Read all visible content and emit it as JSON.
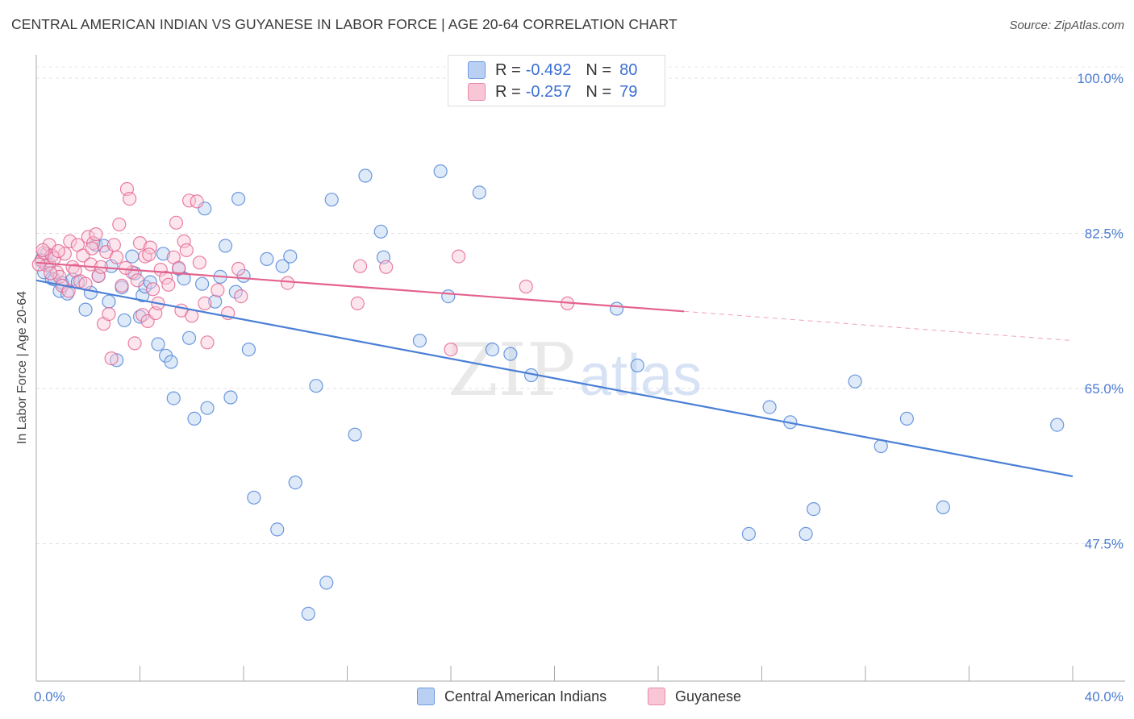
{
  "title": "CENTRAL AMERICAN INDIAN VS GUYANESE IN LABOR FORCE | AGE 20-64 CORRELATION CHART",
  "source": "Source: ZipAtlas.com",
  "watermark": {
    "zip": "ZIP",
    "atlas": "atlas"
  },
  "legend": {
    "r_label": "R =",
    "n_label": "N =",
    "rows": [
      {
        "r": "-0.492",
        "n": "80",
        "fill": "#b9d0f2",
        "stroke": "#6f9be0"
      },
      {
        "r": "-0.257",
        "n": "79",
        "fill": "#f9c6d6",
        "stroke": "#e98aa9"
      }
    ]
  },
  "chart_data": {
    "type": "scatter",
    "title": "CENTRAL AMERICAN INDIAN VS GUYANESE IN LABOR FORCE | AGE 20-64 CORRELATION CHART",
    "xlabel": "",
    "ylabel": "In Labor Force | Age 20-64",
    "xlim": [
      0,
      40
    ],
    "ylim": [
      32,
      102
    ],
    "x_tick_labels": [
      "0.0%",
      "40.0%"
    ],
    "y_ticks": [
      47.5,
      65.0,
      82.5,
      100.0
    ],
    "y_tick_labels": [
      "47.5%",
      "65.0%",
      "82.5%",
      "100.0%"
    ],
    "grid": "horizontal dashed",
    "legend_position": "top-center",
    "series": [
      {
        "name": "Central American Indians",
        "color": "#4a7fd6",
        "fill": "#b9d0f2",
        "trend": {
          "x": [
            0,
            40
          ],
          "y": [
            77.2,
            55.1
          ]
        },
        "points": [
          [
            0.2,
            79.5
          ],
          [
            0.3,
            78.1
          ],
          [
            0.5,
            79.0
          ],
          [
            0.6,
            77.4
          ],
          [
            0.7,
            77.3
          ],
          [
            0.9,
            76.0
          ],
          [
            1.0,
            76.9
          ],
          [
            1.2,
            75.7
          ],
          [
            1.4,
            77.3
          ],
          [
            1.9,
            73.9
          ],
          [
            2.1,
            75.8
          ],
          [
            2.3,
            81.2
          ],
          [
            2.4,
            77.7
          ],
          [
            2.6,
            81.1
          ],
          [
            2.8,
            74.8
          ],
          [
            2.9,
            78.8
          ],
          [
            3.1,
            68.2
          ],
          [
            3.3,
            76.4
          ],
          [
            3.4,
            72.7
          ],
          [
            3.7,
            79.9
          ],
          [
            3.8,
            78.0
          ],
          [
            4.0,
            73.1
          ],
          [
            4.1,
            75.5
          ],
          [
            4.2,
            76.5
          ],
          [
            4.4,
            77.0
          ],
          [
            4.7,
            70.0
          ],
          [
            4.9,
            80.2
          ],
          [
            5.0,
            68.7
          ],
          [
            5.2,
            68.0
          ],
          [
            5.3,
            63.9
          ],
          [
            5.5,
            78.5
          ],
          [
            5.7,
            77.4
          ],
          [
            5.9,
            70.7
          ],
          [
            6.1,
            61.6
          ],
          [
            6.4,
            76.8
          ],
          [
            6.5,
            85.3
          ],
          [
            6.6,
            62.8
          ],
          [
            6.9,
            74.8
          ],
          [
            7.1,
            77.6
          ],
          [
            7.3,
            81.1
          ],
          [
            7.5,
            64.0
          ],
          [
            7.7,
            75.9
          ],
          [
            7.8,
            86.4
          ],
          [
            8.0,
            77.7
          ],
          [
            8.2,
            69.4
          ],
          [
            8.4,
            52.7
          ],
          [
            8.9,
            79.6
          ],
          [
            9.3,
            49.1
          ],
          [
            9.5,
            78.8
          ],
          [
            9.8,
            79.9
          ],
          [
            10.0,
            54.4
          ],
          [
            10.5,
            39.6
          ],
          [
            10.8,
            65.3
          ],
          [
            11.2,
            43.1
          ],
          [
            11.4,
            86.3
          ],
          [
            12.3,
            59.8
          ],
          [
            12.7,
            89.0
          ],
          [
            13.3,
            82.7
          ],
          [
            13.4,
            79.8
          ],
          [
            14.8,
            70.4
          ],
          [
            15.6,
            89.5
          ],
          [
            15.9,
            75.4
          ],
          [
            17.1,
            87.1
          ],
          [
            17.6,
            69.4
          ],
          [
            18.3,
            68.9
          ],
          [
            19.1,
            66.5
          ],
          [
            22.4,
            74.0
          ],
          [
            23.2,
            67.6
          ],
          [
            27.5,
            48.6
          ],
          [
            28.3,
            62.9
          ],
          [
            29.1,
            61.2
          ],
          [
            29.7,
            48.6
          ],
          [
            30.0,
            51.4
          ],
          [
            31.6,
            65.8
          ],
          [
            32.6,
            58.5
          ],
          [
            33.6,
            61.6
          ],
          [
            35.0,
            51.6
          ],
          [
            39.4,
            60.9
          ],
          [
            0.4,
            80.2
          ],
          [
            1.6,
            77.0
          ]
        ]
      },
      {
        "name": "Guyanese",
        "color": "#e4628c",
        "fill": "#f9c6d6",
        "trend": {
          "x": [
            0,
            25
          ],
          "y": [
            79.2,
            73.7
          ]
        },
        "trend_dashed": {
          "x": [
            25,
            40
          ],
          "y": [
            73.7,
            70.4
          ]
        },
        "points": [
          [
            0.2,
            79.4
          ],
          [
            0.3,
            80.3
          ],
          [
            0.4,
            78.9
          ],
          [
            0.5,
            81.2
          ],
          [
            0.6,
            80.0
          ],
          [
            0.7,
            79.7
          ],
          [
            0.8,
            78.1
          ],
          [
            0.9,
            77.6
          ],
          [
            1.0,
            76.6
          ],
          [
            1.1,
            80.2
          ],
          [
            1.3,
            81.6
          ],
          [
            1.4,
            78.7
          ],
          [
            1.5,
            78.3
          ],
          [
            1.6,
            81.2
          ],
          [
            1.7,
            77.1
          ],
          [
            1.8,
            80.0
          ],
          [
            1.9,
            76.8
          ],
          [
            2.0,
            82.1
          ],
          [
            2.1,
            79.0
          ],
          [
            2.2,
            81.4
          ],
          [
            2.3,
            82.4
          ],
          [
            2.4,
            77.7
          ],
          [
            2.5,
            78.7
          ],
          [
            2.6,
            72.3
          ],
          [
            2.7,
            80.4
          ],
          [
            2.8,
            73.4
          ],
          [
            2.9,
            68.4
          ],
          [
            3.0,
            81.2
          ],
          [
            3.1,
            79.8
          ],
          [
            3.2,
            83.5
          ],
          [
            3.3,
            76.6
          ],
          [
            3.5,
            87.5
          ],
          [
            3.6,
            86.4
          ],
          [
            3.7,
            78.1
          ],
          [
            3.8,
            70.1
          ],
          [
            3.9,
            77.2
          ],
          [
            4.0,
            81.4
          ],
          [
            4.1,
            73.3
          ],
          [
            4.2,
            79.9
          ],
          [
            4.3,
            72.6
          ],
          [
            4.4,
            80.9
          ],
          [
            4.5,
            76.2
          ],
          [
            4.6,
            73.5
          ],
          [
            4.7,
            74.6
          ],
          [
            4.8,
            78.4
          ],
          [
            5.0,
            77.5
          ],
          [
            5.1,
            76.7
          ],
          [
            5.3,
            79.8
          ],
          [
            5.4,
            83.7
          ],
          [
            5.5,
            78.6
          ],
          [
            5.6,
            73.8
          ],
          [
            5.7,
            81.6
          ],
          [
            5.8,
            80.6
          ],
          [
            5.9,
            86.2
          ],
          [
            6.0,
            73.2
          ],
          [
            6.2,
            86.1
          ],
          [
            6.3,
            79.2
          ],
          [
            6.5,
            74.6
          ],
          [
            6.6,
            70.2
          ],
          [
            7.0,
            76.1
          ],
          [
            7.4,
            73.5
          ],
          [
            7.8,
            78.5
          ],
          [
            7.9,
            75.4
          ],
          [
            9.7,
            76.9
          ],
          [
            12.4,
            74.6
          ],
          [
            12.5,
            78.8
          ],
          [
            13.5,
            78.7
          ],
          [
            16.0,
            69.4
          ],
          [
            16.3,
            79.9
          ],
          [
            18.9,
            76.5
          ],
          [
            20.5,
            74.6
          ],
          [
            0.1,
            79.0
          ],
          [
            0.25,
            80.6
          ],
          [
            0.55,
            78.0
          ],
          [
            0.85,
            80.5
          ],
          [
            1.25,
            76.0
          ],
          [
            2.15,
            80.8
          ],
          [
            3.45,
            78.6
          ],
          [
            4.35,
            80.1
          ]
        ]
      }
    ]
  },
  "bottom_legend": [
    "Central American Indians",
    "Guyanese"
  ]
}
